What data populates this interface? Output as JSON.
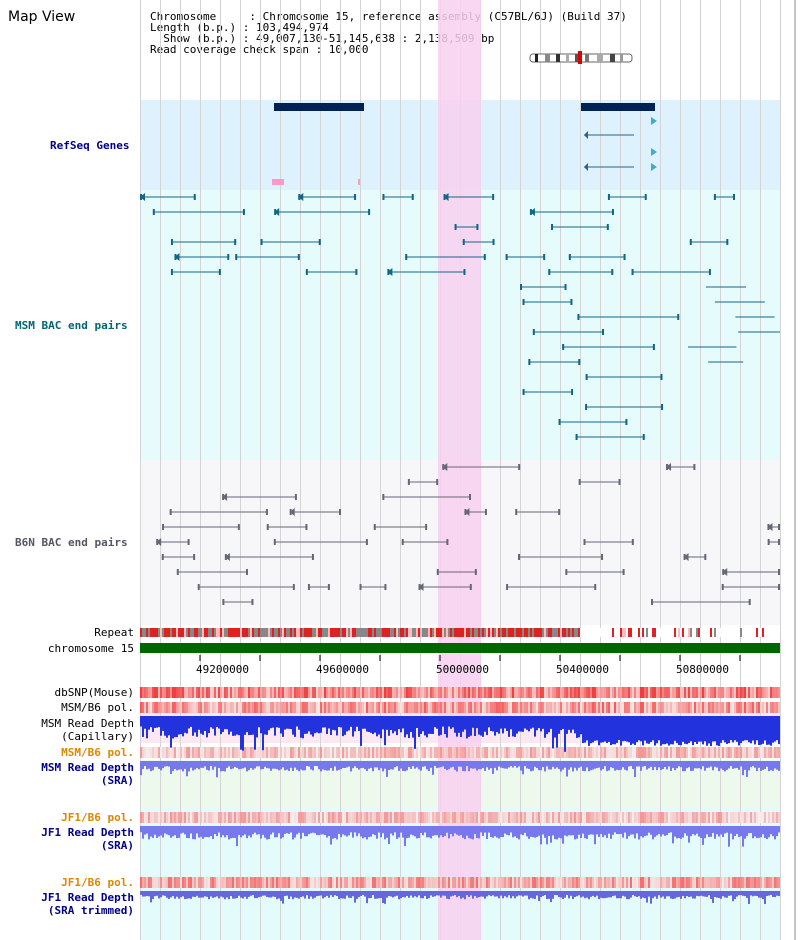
{
  "page": {
    "title": "Map View"
  },
  "header": {
    "lines": [
      "Chromosome     : Chromosome 15, reference assembly (C57BL/6J) (Build 37)",
      "Length (b.p.) : 103,494,974",
      "  Show (b.p.) : 49,007,130-51,145,638 : 2,138,509 bp",
      "Read coverage check span : 10,000"
    ]
  },
  "tracks": {
    "refseq": "RefSeq Genes",
    "msm_bac": "MSM BAC end pairs",
    "b6n_bac": "B6N BAC end pairs",
    "repeat": "Repeat",
    "chromosome": "chromosome 15",
    "dbsnp": "dbSNP(Mouse)",
    "msm_b6_pol1": "MSM/B6 pol.",
    "msm_depth_cap_1": "MSM Read Depth",
    "msm_depth_cap_2": "(Capillary)",
    "msm_b6_pol2": "MSM/B6 pol.",
    "msm_depth_sra_1": "MSM Read Depth",
    "msm_depth_sra_2": "(SRA)",
    "jf1_b6_pol1": "JF1/B6 pol.",
    "jf1_depth_sra_1": "JF1 Read Depth",
    "jf1_depth_sra_2": "(SRA)",
    "jf1_b6_pol2": "JF1/B6 pol.",
    "jf1_depth_trim_1": "JF1 Read Depth",
    "jf1_depth_trim_2": "(SRA trimmed)"
  },
  "axis": {
    "ticks": [
      "49200000",
      "49600000",
      "50000000",
      "50400000",
      "50800000"
    ]
  },
  "colors": {
    "refseq_bg": "#ddf2fc",
    "bac_bg": "#e6fbfb",
    "b6n_bg": "#f7f7fa",
    "highlight": "#f8d0f0",
    "chrom": "#006600",
    "gene": "#002255"
  }
}
